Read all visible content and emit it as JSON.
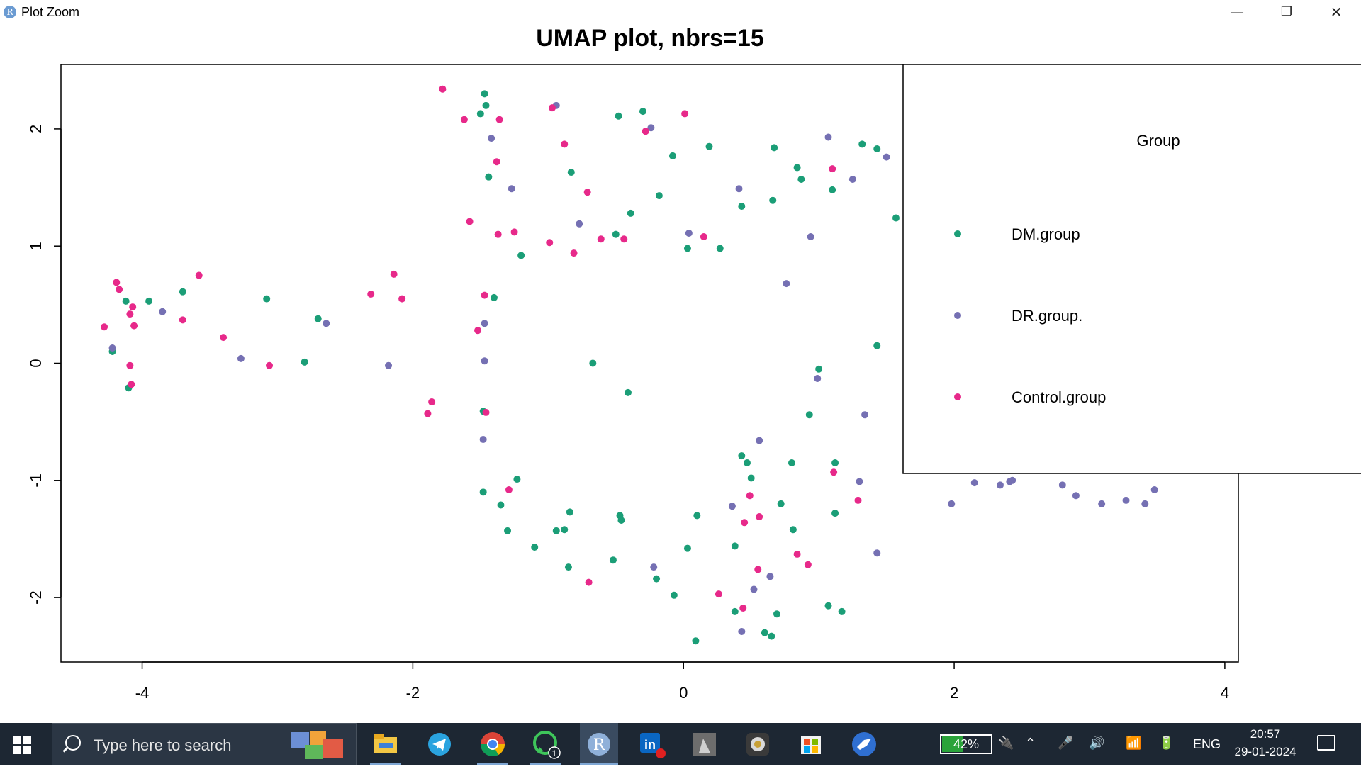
{
  "window": {
    "title": "Plot Zoom",
    "app_icon_letter": "R",
    "minimize": "—",
    "maximize": "❐",
    "close": "✕"
  },
  "chart_data": {
    "type": "scatter",
    "title": "UMAP plot, nbrs=15",
    "xlabel": "",
    "ylabel": "",
    "xlim": [
      -4.6,
      4.1
    ],
    "ylim": [
      -2.55,
      2.55
    ],
    "xticks": [
      "-4",
      "-2",
      "0",
      "2",
      "4"
    ],
    "yticks": [
      "-2",
      "-1",
      "0",
      "1",
      "2"
    ],
    "grid": false,
    "legend": {
      "position": "right",
      "title": "Group",
      "entries": [
        "DM.group",
        "DR.group.",
        "Control.group"
      ]
    },
    "series": [
      {
        "name": "DM.group",
        "color": "#1b9e77",
        "points": [
          [
            -1.47,
            2.3
          ],
          [
            -1.46,
            2.2
          ],
          [
            -1.5,
            2.13
          ],
          [
            -1.44,
            1.59
          ],
          [
            -0.83,
            1.63
          ],
          [
            -0.48,
            2.11
          ],
          [
            -0.3,
            2.15
          ],
          [
            -0.08,
            1.77
          ],
          [
            0.19,
            1.85
          ],
          [
            0.67,
            1.84
          ],
          [
            0.84,
            1.67
          ],
          [
            0.87,
            1.57
          ],
          [
            1.1,
            1.48
          ],
          [
            1.32,
            1.87
          ],
          [
            1.43,
            1.83
          ],
          [
            1.57,
            1.24
          ],
          [
            -0.39,
            1.28
          ],
          [
            -0.18,
            1.43
          ],
          [
            0.43,
            1.34
          ],
          [
            0.66,
            1.39
          ],
          [
            -0.5,
            1.1
          ],
          [
            -1.2,
            0.92
          ],
          [
            0.03,
            0.98
          ],
          [
            0.27,
            0.98
          ],
          [
            -4.12,
            0.53
          ],
          [
            -3.95,
            0.53
          ],
          [
            -3.7,
            0.61
          ],
          [
            -3.08,
            0.55
          ],
          [
            -2.7,
            0.38
          ],
          [
            -2.8,
            0.01
          ],
          [
            -1.4,
            0.56
          ],
          [
            -4.22,
            0.1
          ],
          [
            -4.1,
            -0.21
          ],
          [
            -0.67,
            0.0
          ],
          [
            -0.41,
            -0.25
          ],
          [
            1.0,
            -0.05
          ],
          [
            0.93,
            -0.44
          ],
          [
            1.43,
            0.15
          ],
          [
            -1.48,
            -0.41
          ],
          [
            -1.48,
            -1.1
          ],
          [
            -1.23,
            -0.99
          ],
          [
            -1.35,
            -1.21
          ],
          [
            -1.3,
            -1.43
          ],
          [
            -1.1,
            -1.57
          ],
          [
            -0.94,
            -1.43
          ],
          [
            -0.88,
            -1.42
          ],
          [
            -0.84,
            -1.27
          ],
          [
            -0.85,
            -1.74
          ],
          [
            -0.52,
            -1.68
          ],
          [
            -0.47,
            -1.3
          ],
          [
            -0.46,
            -1.34
          ],
          [
            -0.2,
            -1.84
          ],
          [
            -0.07,
            -1.98
          ],
          [
            0.03,
            -1.58
          ],
          [
            0.1,
            -1.3
          ],
          [
            0.09,
            -2.37
          ],
          [
            0.38,
            -1.56
          ],
          [
            0.38,
            -2.12
          ],
          [
            0.43,
            -0.79
          ],
          [
            0.47,
            -0.85
          ],
          [
            0.5,
            -0.98
          ],
          [
            0.6,
            -2.3
          ],
          [
            0.65,
            -2.33
          ],
          [
            0.69,
            -2.14
          ],
          [
            0.72,
            -1.2
          ],
          [
            0.8,
            -0.85
          ],
          [
            0.81,
            -1.42
          ],
          [
            1.07,
            -2.07
          ],
          [
            1.12,
            -0.85
          ],
          [
            1.12,
            -1.28
          ],
          [
            1.17,
            -2.12
          ]
        ]
      },
      {
        "name": "DR.group.",
        "color": "#7570b3",
        "points": [
          [
            -0.94,
            2.2
          ],
          [
            -0.24,
            2.01
          ],
          [
            -1.42,
            1.92
          ],
          [
            -1.27,
            1.49
          ],
          [
            1.07,
            1.93
          ],
          [
            1.5,
            1.76
          ],
          [
            1.7,
            1.71
          ],
          [
            1.25,
            1.57
          ],
          [
            0.41,
            1.49
          ],
          [
            -0.77,
            1.19
          ],
          [
            0.04,
            1.11
          ],
          [
            0.94,
            1.08
          ],
          [
            0.76,
            0.68
          ],
          [
            -3.85,
            0.44
          ],
          [
            -4.22,
            0.13
          ],
          [
            -3.27,
            0.04
          ],
          [
            -2.64,
            0.34
          ],
          [
            -2.18,
            -0.02
          ],
          [
            -1.47,
            0.34
          ],
          [
            -1.47,
            0.02
          ],
          [
            -1.48,
            -0.65
          ],
          [
            0.99,
            -0.13
          ],
          [
            1.34,
            -0.44
          ],
          [
            0.56,
            -0.66
          ],
          [
            1.3,
            -1.01
          ],
          [
            0.36,
            -1.22
          ],
          [
            -0.22,
            -1.74
          ],
          [
            0.64,
            -1.82
          ],
          [
            0.52,
            -1.93
          ],
          [
            0.43,
            -2.29
          ],
          [
            1.43,
            -1.62
          ],
          [
            1.98,
            -1.2
          ],
          [
            2.15,
            -1.02
          ],
          [
            2.34,
            -1.04
          ],
          [
            2.41,
            -1.01
          ],
          [
            2.43,
            -1.0
          ],
          [
            2.8,
            -1.04
          ],
          [
            2.9,
            -1.13
          ],
          [
            3.09,
            -1.2
          ],
          [
            3.27,
            -1.17
          ],
          [
            3.41,
            -1.2
          ],
          [
            3.48,
            -1.08
          ]
        ]
      },
      {
        "name": "Control.group",
        "color": "#e7298a",
        "points": [
          [
            -1.78,
            2.34
          ],
          [
            -1.62,
            2.08
          ],
          [
            -1.36,
            2.08
          ],
          [
            -0.97,
            2.18
          ],
          [
            -0.88,
            1.87
          ],
          [
            -0.28,
            1.98
          ],
          [
            0.01,
            2.13
          ],
          [
            -1.38,
            1.72
          ],
          [
            -0.71,
            1.46
          ],
          [
            1.1,
            1.66
          ],
          [
            -1.58,
            1.21
          ],
          [
            -1.37,
            1.1
          ],
          [
            -1.25,
            1.12
          ],
          [
            -0.99,
            1.03
          ],
          [
            -0.81,
            0.94
          ],
          [
            -0.61,
            1.06
          ],
          [
            -0.44,
            1.06
          ],
          [
            0.15,
            1.08
          ],
          [
            -4.19,
            0.69
          ],
          [
            -4.17,
            0.63
          ],
          [
            -4.07,
            0.48
          ],
          [
            -4.09,
            0.42
          ],
          [
            -4.06,
            0.32
          ],
          [
            -4.28,
            0.31
          ],
          [
            -3.7,
            0.37
          ],
          [
            -3.58,
            0.75
          ],
          [
            -3.4,
            0.22
          ],
          [
            -3.06,
            -0.02
          ],
          [
            -2.31,
            0.59
          ],
          [
            -2.14,
            0.76
          ],
          [
            -2.08,
            0.55
          ],
          [
            -1.89,
            -0.43
          ],
          [
            -1.86,
            -0.33
          ],
          [
            -1.47,
            0.58
          ],
          [
            -1.52,
            0.28
          ],
          [
            -4.09,
            -0.02
          ],
          [
            -4.08,
            -0.18
          ],
          [
            -1.46,
            -0.42
          ],
          [
            -1.29,
            -1.08
          ],
          [
            1.11,
            -0.93
          ],
          [
            0.49,
            -1.13
          ],
          [
            1.29,
            -1.17
          ],
          [
            0.45,
            -1.36
          ],
          [
            0.56,
            -1.31
          ],
          [
            0.84,
            -1.63
          ],
          [
            0.92,
            -1.72
          ],
          [
            0.55,
            -1.76
          ],
          [
            0.26,
            -1.97
          ],
          [
            0.44,
            -2.09
          ],
          [
            -0.7,
            -1.87
          ]
        ]
      }
    ]
  },
  "taskbar": {
    "search_placeholder": "Type here to search",
    "apps": [
      "file-explorer",
      "telegram",
      "chrome",
      "whatsapp",
      "r-gui",
      "linkedin",
      "photo-app",
      "media-app",
      "microsoft-store",
      "bird-app"
    ],
    "whatsapp_badge": "1",
    "r_letter": "R",
    "linkedin_text": "in",
    "battery_percent": "42%",
    "battery_level": 0.42,
    "language": "ENG",
    "time": "20:57",
    "date": "29-01-2024"
  }
}
